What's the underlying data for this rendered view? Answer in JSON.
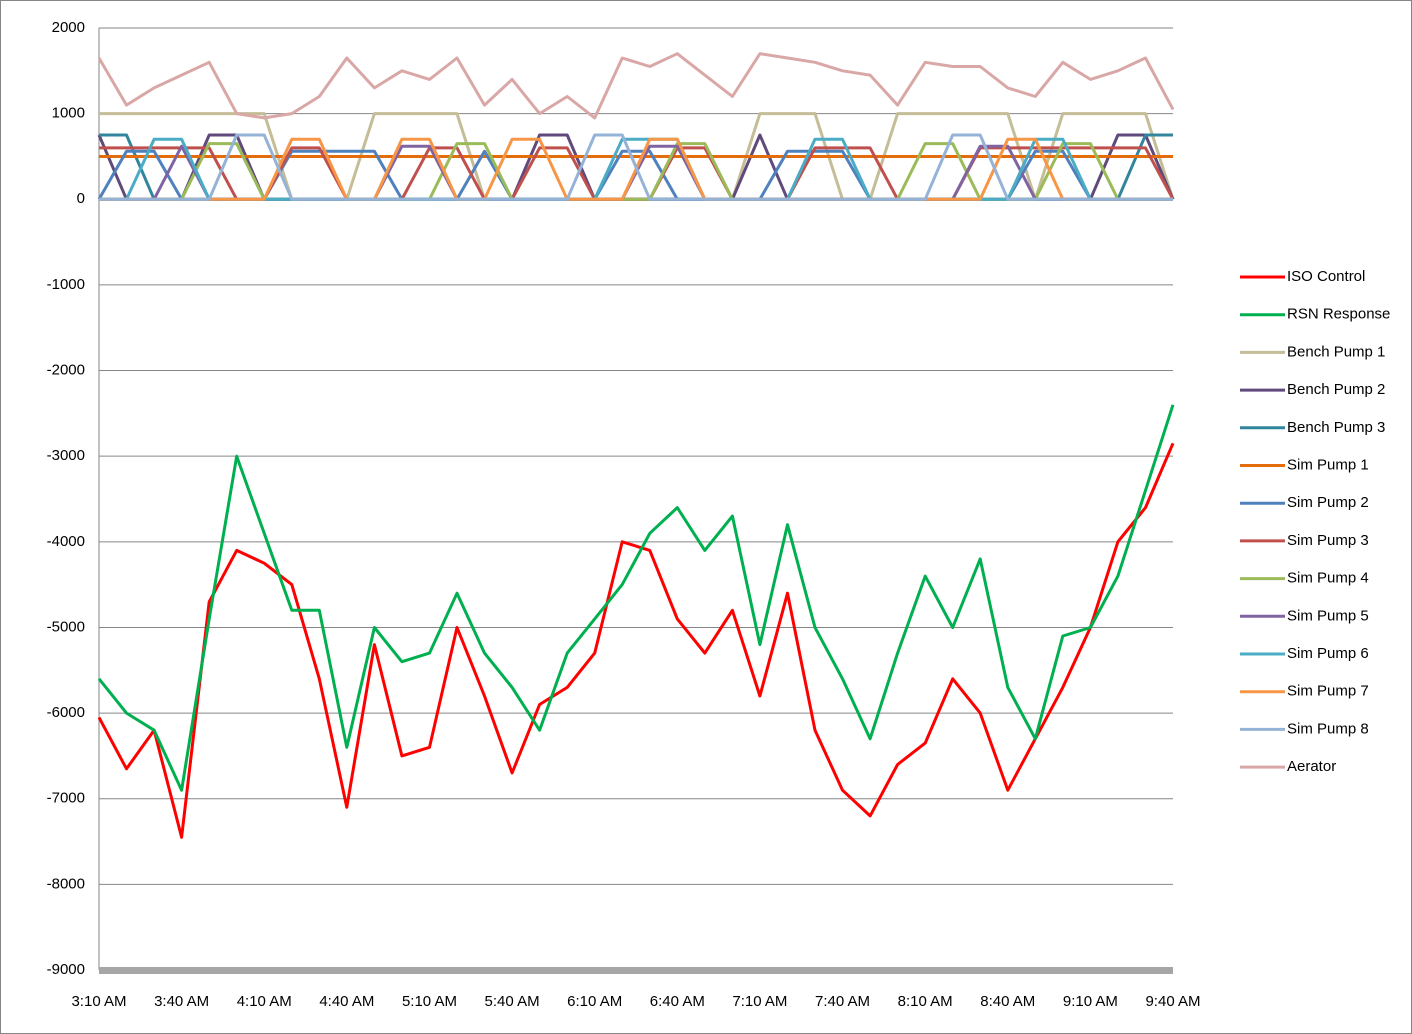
{
  "chart_data": {
    "type": "line",
    "categories": [
      "3:10 AM",
      null,
      null,
      "3:40 AM",
      null,
      null,
      "4:10 AM",
      null,
      null,
      "4:40 AM",
      null,
      null,
      "5:10 AM",
      null,
      null,
      "5:40 AM",
      null,
      null,
      "6:10 AM",
      null,
      null,
      "6:40 AM",
      null,
      null,
      "7:10 AM",
      null,
      null,
      "7:40 AM",
      null,
      null,
      "8:10 AM",
      null,
      null,
      "8:40 AM",
      null,
      null,
      "9:10 AM",
      null,
      null,
      "9:40 AM"
    ],
    "ylim": [
      -9000,
      2000
    ],
    "yticks": [
      2000,
      1000,
      0,
      -1000,
      -2000,
      -3000,
      -4000,
      -5000,
      -6000,
      -7000,
      -8000,
      -9000
    ],
    "grid": true,
    "legend": "right",
    "series": [
      {
        "name": "ISO Control",
        "color": "#ff0000",
        "values": [
          -6050,
          -6650,
          -6200,
          -7450,
          -4700,
          -4100,
          -4250,
          -4500,
          -5600,
          -7100,
          -5200,
          -6500,
          -6400,
          -5000,
          -5800,
          -6700,
          -5900,
          -5700,
          -5300,
          -4000,
          -4100,
          -4900,
          -5300,
          -4800,
          -5800,
          -4600,
          -6200,
          -6900,
          -7200,
          -6600,
          -6350,
          -5600,
          -6000,
          -6900,
          -6300,
          -5700,
          -5000,
          -4000,
          -3600,
          -2850
        ]
      },
      {
        "name": "RSN Response",
        "color": "#00b050",
        "values": [
          -5600,
          -6000,
          -6200,
          -6900,
          -4900,
          -3000,
          -3900,
          -4800,
          -4800,
          -6400,
          -5000,
          -5400,
          -5300,
          -4600,
          -5300,
          -5700,
          -6200,
          -5300,
          -4900,
          -4500,
          -3900,
          -3600,
          -4100,
          -3700,
          -5200,
          -3800,
          -5000,
          -5600,
          -6300,
          -5300,
          -4400,
          -5000,
          -4200,
          -5700,
          -6300,
          -5100,
          -5000,
          -4400,
          -3400,
          -2400
        ]
      },
      {
        "name": "Bench Pump 1",
        "color": "#c4bd97",
        "values": [
          1000,
          1000,
          1000,
          1000,
          1000,
          1000,
          1000,
          0,
          0,
          0,
          1000,
          1000,
          1000,
          1000,
          0,
          0,
          0,
          0,
          0,
          0,
          0,
          0,
          0,
          0,
          1000,
          1000,
          1000,
          0,
          0,
          1000,
          1000,
          1000,
          1000,
          1000,
          0,
          1000,
          1000,
          1000,
          1000,
          0
        ]
      },
      {
        "name": "Bench Pump 2",
        "color": "#604a7b",
        "values": [
          750,
          0,
          0,
          0,
          750,
          750,
          0,
          0,
          0,
          0,
          0,
          0,
          0,
          0,
          0,
          0,
          750,
          750,
          0,
          0,
          0,
          0,
          0,
          0,
          750,
          0,
          0,
          0,
          0,
          0,
          0,
          0,
          0,
          0,
          0,
          0,
          0,
          750,
          750,
          0
        ]
      },
      {
        "name": "Bench Pump 3",
        "color": "#31859c",
        "values": [
          750,
          750,
          0,
          0,
          0,
          0,
          0,
          0,
          0,
          0,
          0,
          0,
          0,
          0,
          0,
          0,
          0,
          0,
          0,
          0,
          0,
          0,
          0,
          0,
          0,
          0,
          0,
          0,
          0,
          0,
          0,
          0,
          0,
          0,
          0,
          0,
          0,
          0,
          750,
          750
        ]
      },
      {
        "name": "Sim Pump 1",
        "color": "#e46c0a",
        "values": [
          500,
          500,
          500,
          500,
          500,
          500,
          500,
          500,
          500,
          500,
          500,
          500,
          500,
          500,
          500,
          500,
          500,
          500,
          500,
          500,
          500,
          500,
          500,
          500,
          500,
          500,
          500,
          500,
          500,
          500,
          500,
          500,
          500,
          500,
          500,
          500,
          500,
          500,
          500,
          500
        ]
      },
      {
        "name": "Sim Pump 2",
        "color": "#4f81bd",
        "values": [
          0,
          560,
          560,
          0,
          0,
          0,
          0,
          560,
          560,
          560,
          560,
          0,
          0,
          0,
          560,
          0,
          0,
          0,
          0,
          560,
          560,
          0,
          0,
          0,
          0,
          560,
          560,
          560,
          0,
          0,
          0,
          0,
          0,
          0,
          560,
          560,
          0,
          0,
          0,
          0
        ]
      },
      {
        "name": "Sim Pump 3",
        "color": "#c0504d",
        "values": [
          600,
          600,
          600,
          600,
          600,
          0,
          0,
          600,
          600,
          0,
          0,
          0,
          600,
          600,
          0,
          0,
          600,
          600,
          0,
          0,
          0,
          600,
          600,
          0,
          0,
          0,
          600,
          600,
          600,
          0,
          0,
          0,
          600,
          600,
          600,
          600,
          600,
          600,
          600,
          0
        ]
      },
      {
        "name": "Sim Pump 4",
        "color": "#9bbb59",
        "values": [
          0,
          0,
          0,
          0,
          650,
          650,
          0,
          0,
          0,
          0,
          0,
          0,
          0,
          650,
          650,
          0,
          0,
          0,
          0,
          0,
          0,
          650,
          650,
          0,
          0,
          0,
          0,
          0,
          0,
          0,
          650,
          650,
          0,
          0,
          0,
          650,
          650,
          0,
          0,
          0
        ]
      },
      {
        "name": "Sim Pump 5",
        "color": "#8064a2",
        "values": [
          0,
          0,
          0,
          620,
          0,
          0,
          0,
          0,
          0,
          0,
          0,
          620,
          620,
          0,
          0,
          0,
          0,
          0,
          0,
          0,
          620,
          620,
          0,
          0,
          0,
          0,
          0,
          0,
          0,
          0,
          0,
          0,
          620,
          620,
          0,
          0,
          0,
          0,
          0,
          0
        ]
      },
      {
        "name": "Sim Pump 6",
        "color": "#4bacc6",
        "values": [
          0,
          0,
          700,
          700,
          0,
          0,
          0,
          0,
          0,
          0,
          0,
          0,
          0,
          0,
          0,
          0,
          0,
          0,
          0,
          700,
          700,
          700,
          0,
          0,
          0,
          0,
          700,
          700,
          0,
          0,
          0,
          0,
          0,
          0,
          700,
          700,
          0,
          0,
          0,
          0
        ]
      },
      {
        "name": "Sim Pump 7",
        "color": "#f79646",
        "values": [
          0,
          0,
          0,
          0,
          0,
          0,
          0,
          700,
          700,
          0,
          0,
          700,
          700,
          0,
          0,
          700,
          700,
          0,
          0,
          0,
          700,
          700,
          0,
          0,
          0,
          0,
          0,
          0,
          0,
          0,
          0,
          0,
          0,
          700,
          700,
          0,
          0,
          0,
          0,
          0
        ]
      },
      {
        "name": "Sim Pump 8",
        "color": "#95b3d7",
        "values": [
          0,
          0,
          0,
          0,
          0,
          750,
          750,
          0,
          0,
          0,
          0,
          0,
          0,
          0,
          0,
          0,
          0,
          0,
          750,
          750,
          0,
          0,
          0,
          0,
          0,
          0,
          0,
          0,
          0,
          0,
          0,
          750,
          750,
          0,
          0,
          0,
          0,
          0,
          0,
          0
        ]
      },
      {
        "name": "Aerator",
        "color": "#d9a8a6",
        "values": [
          1650,
          1100,
          1300,
          1450,
          1600,
          1000,
          950,
          1000,
          1200,
          1650,
          1300,
          1500,
          1400,
          1650,
          1100,
          1400,
          1000,
          1200,
          950,
          1650,
          1550,
          1700,
          1450,
          1200,
          1700,
          1650,
          1600,
          1500,
          1450,
          1100,
          1600,
          1550,
          1550,
          1300,
          1200,
          1600,
          1400,
          1500,
          1650,
          1050
        ]
      }
    ]
  }
}
